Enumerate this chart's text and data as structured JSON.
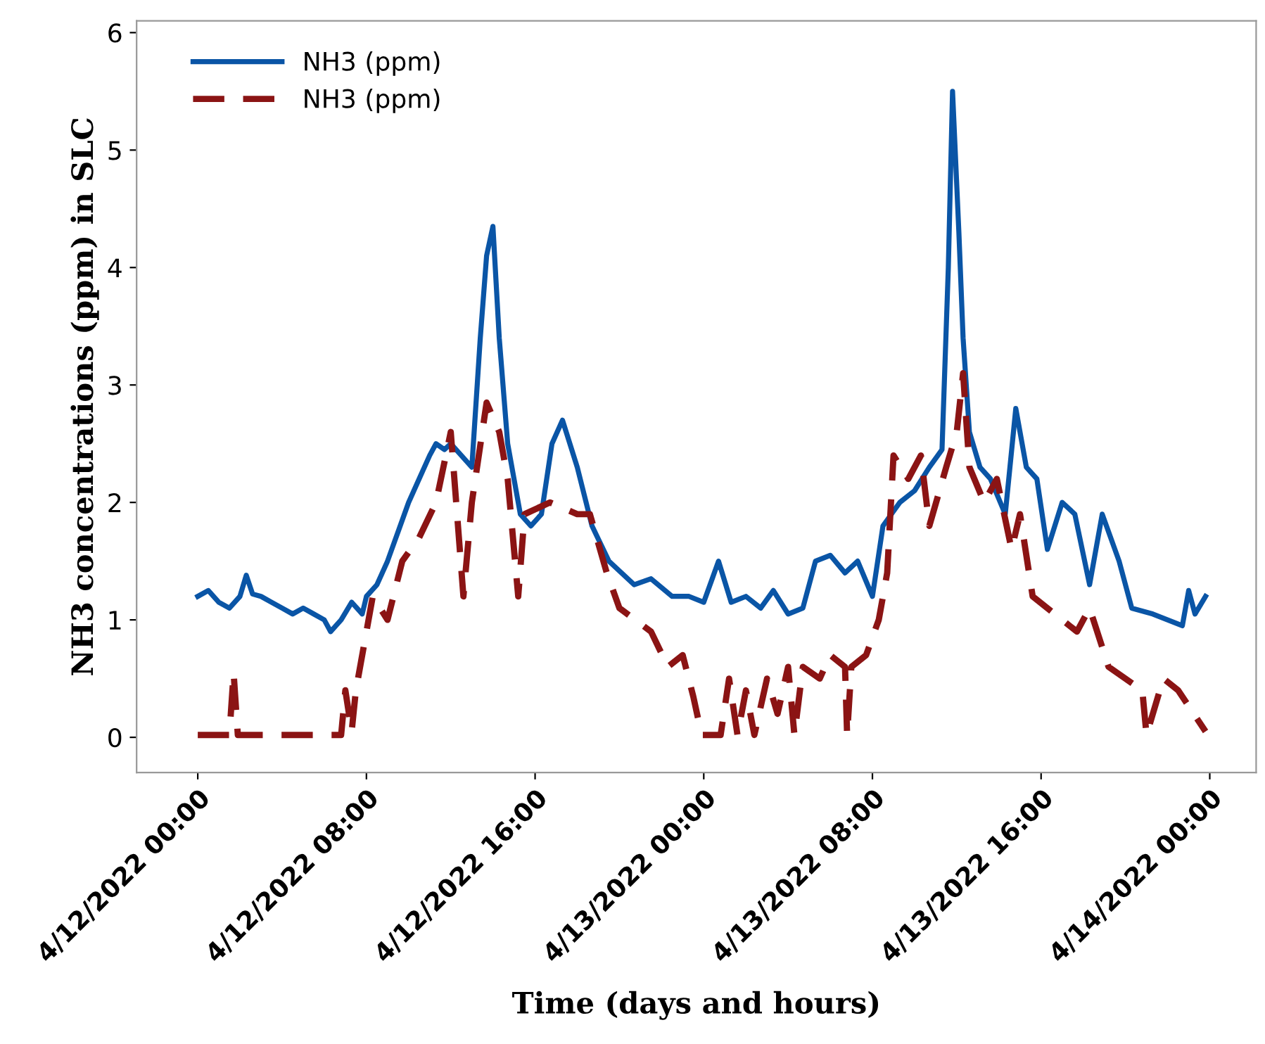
{
  "chart_data": {
    "type": "line",
    "xlabel": "Time (days and hours)",
    "ylabel": "NH3 concentrations (ppm) in SLC",
    "xlim": [
      "2022-04-11T21:06",
      "2022-04-14T02:12"
    ],
    "ylim": [
      -0.3,
      6.1
    ],
    "xticks": [
      {
        "value": "2022-04-12T00:00",
        "label": "4/12/2022 00:00"
      },
      {
        "value": "2022-04-12T08:00",
        "label": "4/12/2022 08:00"
      },
      {
        "value": "2022-04-12T16:00",
        "label": "4/12/2022 16:00"
      },
      {
        "value": "2022-04-13T00:00",
        "label": "4/13/2022 00:00"
      },
      {
        "value": "2022-04-13T08:00",
        "label": "4/13/2022 08:00"
      },
      {
        "value": "2022-04-13T16:00",
        "label": "4/13/2022 16:00"
      },
      {
        "value": "2022-04-14T00:00",
        "label": "4/14/2022 00:00"
      }
    ],
    "yticks": [
      0,
      1,
      2,
      3,
      4,
      5,
      6
    ],
    "grid": false,
    "legend": "top left",
    "marker": "none",
    "series": [
      {
        "name": "NH3 (ppm)",
        "color": "#0a55a6",
        "line_style": "solid",
        "x": [
          "2022-04-12T00:00",
          "2022-04-12T00:30",
          "2022-04-12T01:00",
          "2022-04-12T01:30",
          "2022-04-12T02:00",
          "2022-04-12T02:18",
          "2022-04-12T02:36",
          "2022-04-12T03:00",
          "2022-04-12T03:30",
          "2022-04-12T04:00",
          "2022-04-12T04:30",
          "2022-04-12T05:00",
          "2022-04-12T05:30",
          "2022-04-12T06:00",
          "2022-04-12T06:18",
          "2022-04-12T06:48",
          "2022-04-12T07:18",
          "2022-04-12T07:48",
          "2022-04-12T08:00",
          "2022-04-12T08:30",
          "2022-04-12T09:00",
          "2022-04-12T09:30",
          "2022-04-12T10:00",
          "2022-04-12T10:30",
          "2022-04-12T11:00",
          "2022-04-12T11:18",
          "2022-04-12T11:42",
          "2022-04-12T12:00",
          "2022-04-12T12:30",
          "2022-04-12T13:00",
          "2022-04-12T13:24",
          "2022-04-12T13:42",
          "2022-04-12T14:00",
          "2022-04-12T14:18",
          "2022-04-12T14:42",
          "2022-04-12T15:18",
          "2022-04-12T15:48",
          "2022-04-12T16:18",
          "2022-04-12T16:48",
          "2022-04-12T17:18",
          "2022-04-12T18:00",
          "2022-04-12T18:42",
          "2022-04-12T19:30",
          "2022-04-12T20:42",
          "2022-04-12T21:30",
          "2022-04-12T22:30",
          "2022-04-12T23:18",
          "2022-04-13T00:00",
          "2022-04-13T00:42",
          "2022-04-13T01:18",
          "2022-04-13T02:00",
          "2022-04-13T02:42",
          "2022-04-13T03:18",
          "2022-04-13T04:00",
          "2022-04-13T04:42",
          "2022-04-13T05:18",
          "2022-04-13T06:00",
          "2022-04-13T06:42",
          "2022-04-13T07:18",
          "2022-04-13T08:00",
          "2022-04-13T08:30",
          "2022-04-13T09:18",
          "2022-04-13T10:00",
          "2022-04-13T10:42",
          "2022-04-13T11:18",
          "2022-04-13T11:36",
          "2022-04-13T11:48",
          "2022-04-13T12:06",
          "2022-04-13T12:18",
          "2022-04-13T12:36",
          "2022-04-13T13:06",
          "2022-04-13T13:36",
          "2022-04-13T14:18",
          "2022-04-13T14:48",
          "2022-04-13T15:18",
          "2022-04-13T15:48",
          "2022-04-13T16:18",
          "2022-04-13T17:00",
          "2022-04-13T17:36",
          "2022-04-13T18:18",
          "2022-04-13T18:54",
          "2022-04-13T19:42",
          "2022-04-13T20:18",
          "2022-04-13T21:18",
          "2022-04-13T22:00",
          "2022-04-13T22:42",
          "2022-04-13T23:00",
          "2022-04-13T23:18",
          "2022-04-13T23:48"
        ],
        "values": [
          1.2,
          1.25,
          1.15,
          1.1,
          1.2,
          1.38,
          1.22,
          1.2,
          1.15,
          1.1,
          1.05,
          1.1,
          1.05,
          1.0,
          0.9,
          1.0,
          1.15,
          1.05,
          1.2,
          1.3,
          1.5,
          1.75,
          2.0,
          2.2,
          2.4,
          2.5,
          2.45,
          2.5,
          2.4,
          2.3,
          3.4,
          4.1,
          4.35,
          3.4,
          2.5,
          1.9,
          1.8,
          1.9,
          2.5,
          2.7,
          2.3,
          1.8,
          1.5,
          1.3,
          1.35,
          1.2,
          1.2,
          1.15,
          1.5,
          1.15,
          1.2,
          1.1,
          1.25,
          1.05,
          1.1,
          1.5,
          1.55,
          1.4,
          1.5,
          1.2,
          1.8,
          2.0,
          2.1,
          2.3,
          2.45,
          4.0,
          5.5,
          4.3,
          3.4,
          2.6,
          2.3,
          2.2,
          1.9,
          2.8,
          2.3,
          2.2,
          1.6,
          2.0,
          1.9,
          1.3,
          1.9,
          1.5,
          1.1,
          1.05,
          1.0,
          0.95,
          1.25,
          1.05,
          1.2
        ]
      },
      {
        "name": "NH3 (ppm)",
        "color": "#8b1414",
        "line_style": "dashed",
        "x": [
          "2022-04-12T00:00",
          "2022-04-12T01:30",
          "2022-04-12T01:42",
          "2022-04-12T01:54",
          "2022-04-12T06:48",
          "2022-04-12T07:00",
          "2022-04-12T07:18",
          "2022-04-12T07:30",
          "2022-04-12T08:18",
          "2022-04-12T09:00",
          "2022-04-12T09:42",
          "2022-04-12T10:30",
          "2022-04-12T11:18",
          "2022-04-12T12:00",
          "2022-04-12T12:36",
          "2022-04-12T13:00",
          "2022-04-12T13:42",
          "2022-04-12T14:18",
          "2022-04-12T14:42",
          "2022-04-12T15:12",
          "2022-04-12T15:30",
          "2022-04-12T16:42",
          "2022-04-12T18:00",
          "2022-04-12T18:36",
          "2022-04-12T19:24",
          "2022-04-12T20:00",
          "2022-04-12T21:30",
          "2022-04-12T22:18",
          "2022-04-12T23:00",
          "2022-04-12T23:30",
          "2022-04-12T23:54",
          "2022-04-13T00:48",
          "2022-04-13T01:12",
          "2022-04-13T01:36",
          "2022-04-13T02:00",
          "2022-04-13T02:24",
          "2022-04-13T03:00",
          "2022-04-13T03:30",
          "2022-04-13T04:00",
          "2022-04-13T04:18",
          "2022-04-13T04:42",
          "2022-04-13T05:30",
          "2022-04-13T06:00",
          "2022-04-13T06:42",
          "2022-04-13T06:48",
          "2022-04-13T07:00",
          "2022-04-13T07:42",
          "2022-04-13T08:18",
          "2022-04-13T08:42",
          "2022-04-13T09:00",
          "2022-04-13T09:42",
          "2022-04-13T10:18",
          "2022-04-13T10:42",
          "2022-04-13T11:30",
          "2022-04-13T12:00",
          "2022-04-13T12:18",
          "2022-04-13T12:36",
          "2022-04-13T13:18",
          "2022-04-13T13:54",
          "2022-04-13T14:36",
          "2022-04-13T15:00",
          "2022-04-13T15:36",
          "2022-04-13T16:18",
          "2022-04-13T17:00",
          "2022-04-13T17:42",
          "2022-04-13T18:18",
          "2022-04-13T19:12",
          "2022-04-13T20:00",
          "2022-04-13T20:48",
          "2022-04-13T21:00",
          "2022-04-13T21:48",
          "2022-04-13T22:30",
          "2022-04-13T23:48"
        ],
        "values": [
          0.02,
          0.02,
          0.55,
          0.02,
          0.02,
          0.4,
          0.05,
          0.4,
          1.2,
          1.0,
          1.5,
          1.7,
          2.0,
          2.6,
          1.2,
          2.0,
          2.85,
          2.6,
          2.2,
          1.2,
          1.9,
          2.0,
          1.9,
          1.9,
          1.4,
          1.1,
          0.9,
          0.6,
          0.7,
          0.35,
          0.02,
          0.02,
          0.5,
          0.02,
          0.4,
          0.02,
          0.5,
          0.2,
          0.6,
          0.02,
          0.6,
          0.5,
          0.7,
          0.6,
          0.02,
          0.6,
          0.7,
          1.0,
          1.4,
          2.4,
          2.2,
          2.4,
          1.8,
          2.3,
          2.6,
          3.1,
          2.3,
          2.0,
          2.2,
          1.6,
          1.9,
          1.2,
          1.1,
          1.0,
          0.9,
          1.1,
          0.6,
          0.5,
          0.4,
          0.02,
          0.5,
          0.4,
          0.05
        ]
      }
    ]
  }
}
